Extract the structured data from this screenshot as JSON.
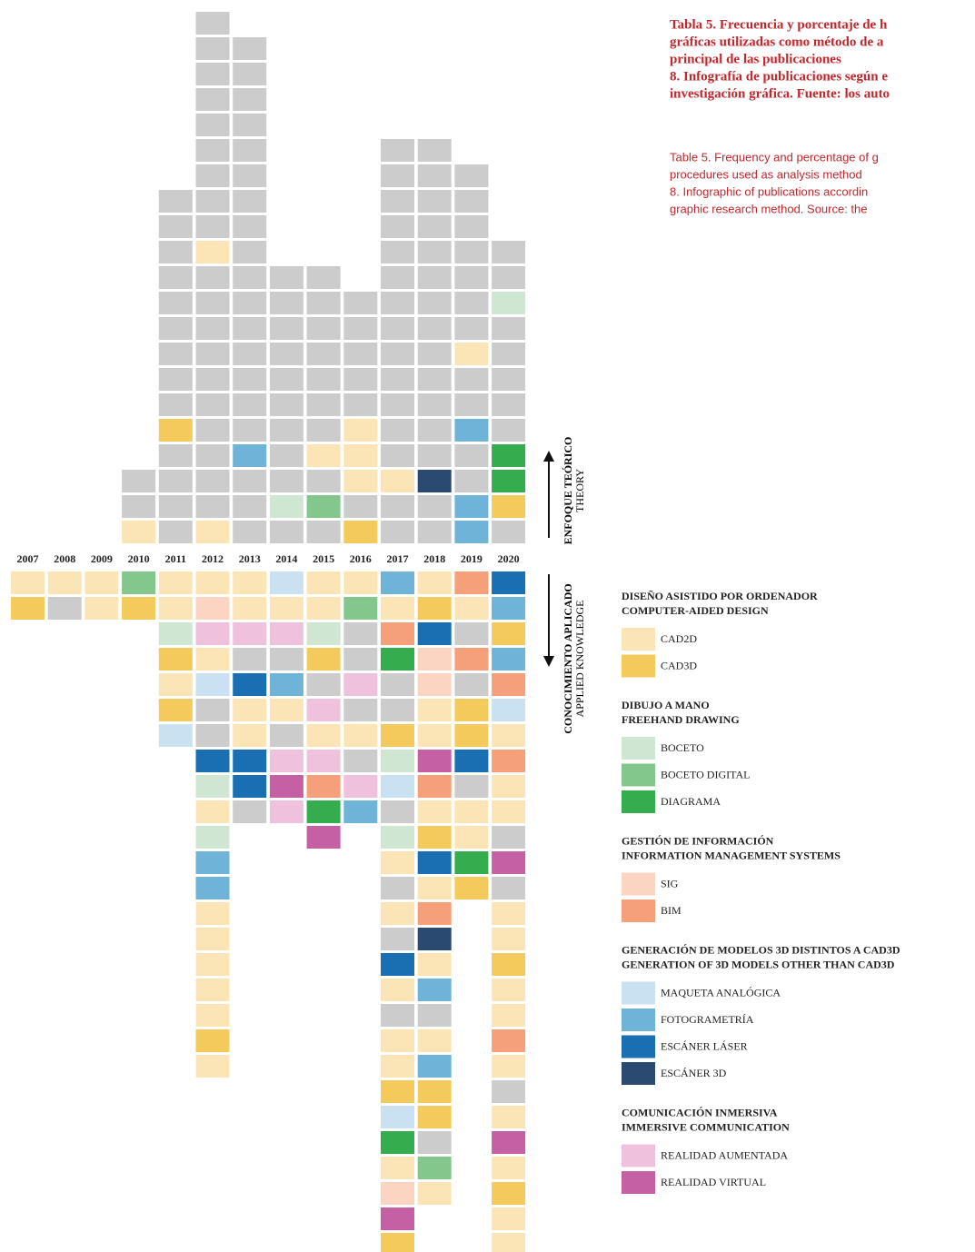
{
  "header": {
    "es_lines": [
      "Tabla 5. Frecuencia y porcentaje de h",
      "gráficas utilizadas como método de a",
      "principal de las publicaciones",
      "8. Infografía de publicaciones según e",
      "investigación gráfica. Fuente: los auto"
    ],
    "en_lines": [
      "Table 5. Frequency and percentage of g",
      "procedures used as analysis method",
      "8. Infographic of publications accordin",
      "graphic research method. Source: the"
    ]
  },
  "axis_labels": {
    "theory_es": "ENFOQUE TEÓRICO",
    "theory_en": "THEORY",
    "applied_es": "CONOCIMIENTO APLICADO",
    "applied_en": "APPLIED KNOWLEDGE"
  },
  "legend": [
    {
      "title_es": "DISEÑO ASISTIDO POR ORDENADOR",
      "title_en": "COMPUTER-AIDED DESIGN",
      "items": [
        {
          "label": "CAD2D",
          "color": "#fbe5b6"
        },
        {
          "label": "CAD3D",
          "color": "#f4ca5c"
        }
      ]
    },
    {
      "title_es": "DIBUJO A MANO",
      "title_en": "FREEHAND DRAWING",
      "items": [
        {
          "label": "BOCETO",
          "color": "#cfe6d3"
        },
        {
          "label": "BOCETO DIGITAL",
          "color": "#84c78c"
        },
        {
          "label": "DIAGRAMA",
          "color": "#35ad4f"
        }
      ]
    },
    {
      "title_es": "GESTIÓN DE INFORMACIÓN",
      "title_en": "INFORMATION MANAGEMENT SYSTEMS",
      "items": [
        {
          "label": "SIG",
          "color": "#fcd5c2"
        },
        {
          "label": "BIM",
          "color": "#f5a07b"
        }
      ]
    },
    {
      "title_es": "GENERACIÓN DE MODELOS 3D DISTINTOS A CAD3D",
      "title_en": "GENERATION OF 3D MODELS OTHER THAN CAD3D",
      "items": [
        {
          "label": "MAQUETA ANALÓGICA",
          "color": "#c9e1f0"
        },
        {
          "label": "FOTOGRAMETRÍA",
          "color": "#6fb3d9"
        },
        {
          "label": "ESCÁNER LÁSER",
          "color": "#1a6fb3"
        },
        {
          "label": "ESCÁNER 3D",
          "color": "#2b4a72"
        }
      ]
    },
    {
      "title_es": "COMUNICACIÓN INMERSIVA",
      "title_en": "IMMERSIVE COMMUNICATION",
      "items": [
        {
          "label": "REALIDAD AUMENTADA",
          "color": "#f0c1dd"
        },
        {
          "label": "REALIDAD VIRTUAL",
          "color": "#c660a5"
        }
      ]
    }
  ],
  "other_color": "#cccccc",
  "years": [
    "2007",
    "2008",
    "2009",
    "2010",
    "2011",
    "2012",
    "2013",
    "2014",
    "2015",
    "2016",
    "2017",
    "2018",
    "2019",
    "2020"
  ],
  "columns": [
    {
      "theory": [],
      "applied": [
        "CAD2D",
        "CAD3D"
      ]
    },
    {
      "theory": [],
      "applied": [
        "CAD2D",
        null
      ]
    },
    {
      "theory": [],
      "applied": [
        "CAD2D",
        "CAD2D"
      ]
    },
    {
      "theory": [
        "CAD2D",
        null,
        null
      ],
      "applied": [
        "BOCETO DIGITAL",
        "CAD3D"
      ]
    },
    {
      "theory": [
        null,
        null,
        null,
        null,
        "CAD3D",
        null,
        null,
        null,
        null,
        null,
        null,
        null,
        null,
        null
      ],
      "applied": [
        "CAD2D",
        "CAD2D",
        "BOCETO",
        "CAD3D",
        "CAD2D",
        "CAD3D",
        "MAQUETA ANALÓGICA"
      ]
    },
    {
      "theory": [
        "CAD2D",
        null,
        null,
        null,
        null,
        null,
        null,
        null,
        null,
        null,
        null,
        "CAD2D",
        null,
        null,
        null,
        null,
        null,
        null,
        null,
        null,
        null
      ],
      "applied": [
        "CAD2D",
        "SIG",
        "REALIDAD AUMENTADA",
        "CAD2D",
        "MAQUETA ANALÓGICA",
        null,
        null,
        "ESCÁNER LÁSER",
        "BOCETO",
        "CAD2D",
        "BOCETO",
        "FOTOGRAMETRÍA",
        "FOTOGRAMETRÍA",
        "CAD2D",
        "CAD2D",
        "CAD2D",
        "CAD2D",
        "CAD2D",
        "CAD3D",
        "CAD2D"
      ]
    },
    {
      "theory": [
        null,
        null,
        null,
        "FOTOGRAMETRÍA",
        null,
        null,
        null,
        null,
        null,
        null,
        null,
        null,
        null,
        null,
        null,
        null,
        null,
        null,
        null,
        null
      ],
      "applied": [
        "CAD2D",
        "CAD2D",
        "REALIDAD AUMENTADA",
        null,
        "ESCÁNER LÁSER",
        "CAD2D",
        "CAD2D",
        "ESCÁNER LÁSER",
        "ESCÁNER LÁSER",
        null
      ]
    },
    {
      "theory": [
        null,
        "BOCETO",
        null,
        null,
        null,
        null,
        null,
        null,
        null,
        null,
        null
      ],
      "applied": [
        "MAQUETA ANALÓGICA",
        "CAD2D",
        "REALIDAD AUMENTADA",
        null,
        "FOTOGRAMETRÍA",
        "CAD2D",
        null,
        "REALIDAD AUMENTADA",
        "REALIDAD VIRTUAL",
        "REALIDAD AUMENTADA"
      ]
    },
    {
      "theory": [
        null,
        "BOCETO DIGITAL",
        null,
        "CAD2D",
        null,
        null,
        null,
        null,
        null,
        null,
        null
      ],
      "applied": [
        "CAD2D",
        "CAD2D",
        "BOCETO",
        "CAD3D",
        null,
        "REALIDAD AUMENTADA",
        "CAD2D",
        "REALIDAD AUMENTADA",
        "BIM",
        "DIAGRAMA",
        "REALIDAD VIRTUAL"
      ]
    },
    {
      "theory": [
        "CAD3D",
        null,
        "CAD2D",
        "CAD2D",
        "CAD2D",
        null,
        null,
        null,
        null,
        null
      ],
      "applied": [
        "CAD2D",
        "BOCETO DIGITAL",
        null,
        null,
        "REALIDAD AUMENTADA",
        null,
        "CAD2D",
        null,
        "REALIDAD AUMENTADA",
        "FOTOGRAMETRÍA"
      ]
    },
    {
      "theory": [
        null,
        null,
        "CAD2D",
        null,
        null,
        null,
        null,
        null,
        null,
        null,
        null,
        null,
        null,
        null,
        null,
        null
      ],
      "applied": [
        "FOTOGRAMETRÍA",
        "CAD2D",
        "BIM",
        "DIAGRAMA",
        null,
        null,
        "CAD3D",
        "BOCETO",
        "MAQUETA ANALÓGICA",
        null,
        "BOCETO",
        "CAD2D",
        null,
        "CAD2D",
        null,
        "ESCÁNER LÁSER",
        "CAD2D",
        null,
        "CAD2D",
        "CAD2D",
        "CAD3D",
        "MAQUETA ANALÓGICA",
        "DIAGRAMA",
        "CAD2D",
        "SIG",
        "REALIDAD VIRTUAL",
        "CAD3D"
      ]
    },
    {
      "theory": [
        null,
        null,
        "ESCÁNER 3D",
        null,
        null,
        null,
        null,
        null,
        null,
        null,
        null,
        null,
        null,
        null,
        null,
        null
      ],
      "applied": [
        "CAD2D",
        "CAD3D",
        "ESCÁNER LÁSER",
        "SIG",
        "SIG",
        "CAD2D",
        "CAD2D",
        "REALIDAD VIRTUAL",
        "BIM",
        "CAD2D",
        "CAD3D",
        "ESCÁNER LÁSER",
        "CAD2D",
        "BIM",
        "ESCÁNER 3D",
        "CAD2D",
        "FOTOGRAMETRÍA",
        null,
        "CAD2D",
        "FOTOGRAMETRÍA",
        "CAD3D",
        "CAD3D",
        null,
        "BOCETO DIGITAL",
        "CAD2D"
      ]
    },
    {
      "theory": [
        "FOTOGRAMETRÍA",
        "FOTOGRAMETRÍA",
        null,
        null,
        "FOTOGRAMETRÍA",
        null,
        null,
        "CAD2D",
        null,
        null,
        null,
        null,
        null,
        null,
        null
      ],
      "applied": [
        "BIM",
        "CAD2D",
        null,
        "BIM",
        null,
        "CAD3D",
        "CAD3D",
        "ESCÁNER LÁSER",
        null,
        "CAD2D",
        "CAD2D",
        "DIAGRAMA",
        "CAD3D"
      ]
    },
    {
      "theory": [
        null,
        "CAD3D",
        "DIAGRAMA",
        "DIAGRAMA",
        null,
        null,
        null,
        null,
        null,
        "BOCETO",
        null,
        null
      ],
      "applied": [
        "ESCÁNER LÁSER",
        "FOTOGRAMETRÍA",
        "CAD3D",
        "FOTOGRAMETRÍA",
        "BIM",
        "MAQUETA ANALÓGICA",
        "CAD2D",
        "BIM",
        "CAD2D",
        "CAD2D",
        null,
        "REALIDAD VIRTUAL",
        null,
        "CAD2D",
        "CAD2D",
        "CAD3D",
        "CAD2D",
        "CAD2D",
        "BIM",
        "CAD2D",
        null,
        "CAD2D",
        "REALIDAD VIRTUAL",
        "CAD2D",
        "CAD3D",
        "CAD2D",
        "CAD2D"
      ]
    }
  ]
}
